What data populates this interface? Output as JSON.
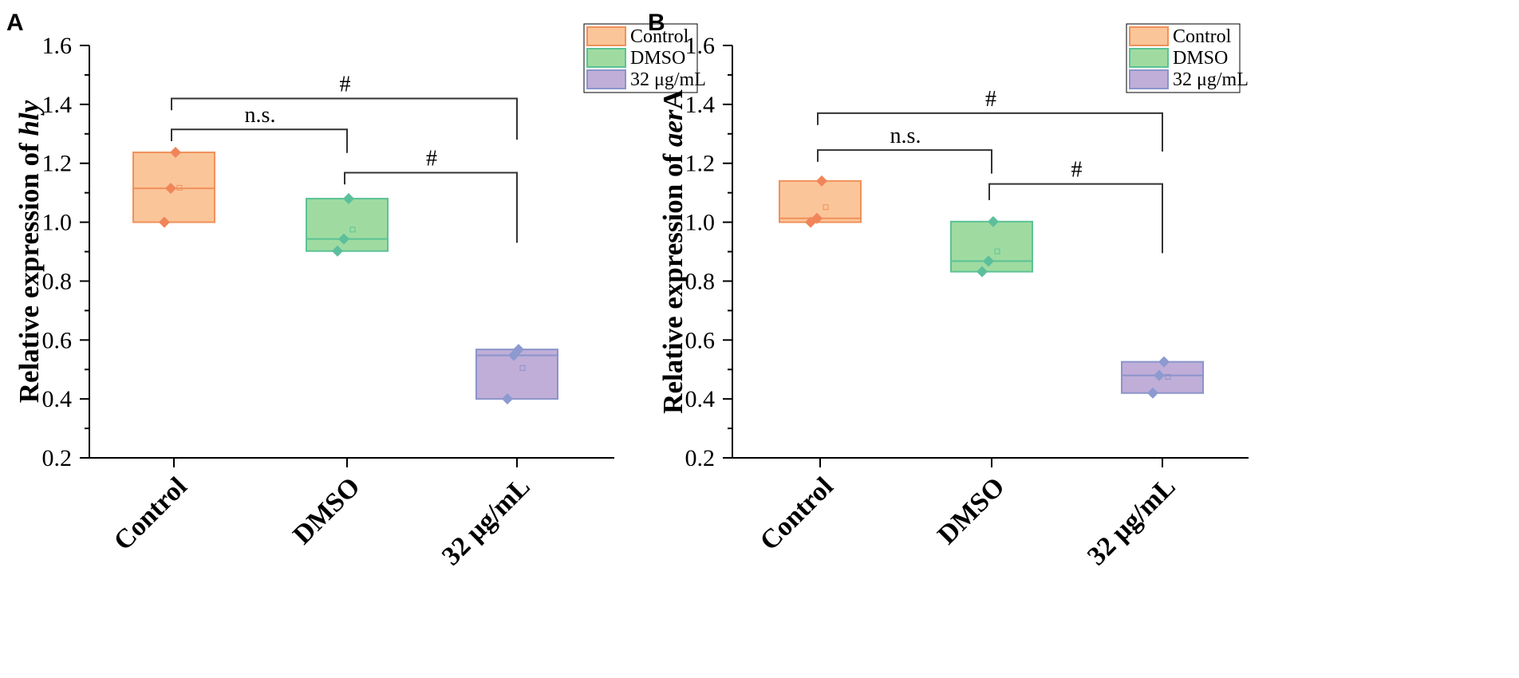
{
  "chart_data": [
    {
      "type": "box",
      "panel": "A",
      "ylabel_prefix": "Relative expression of ",
      "ylabel_gene": "hly",
      "ylim": [
        0.2,
        1.6
      ],
      "yticks": [
        "0.2",
        "0.4",
        "0.6",
        "0.8",
        "1.0",
        "1.2",
        "1.4",
        "1.6"
      ],
      "categories": [
        "Control",
        "DMSO",
        "32 μg/mL"
      ],
      "legend": [
        "Control",
        "DMSO",
        "32 μg/mL"
      ],
      "boxes": [
        {
          "name": "Control",
          "min": 1.0,
          "median": 1.115,
          "max": 1.237,
          "mean": 1.117,
          "points": [
            1.0,
            1.115,
            1.237
          ]
        },
        {
          "name": "DMSO",
          "min": 0.902,
          "median": 0.943,
          "max": 1.08,
          "mean": 0.975,
          "points": [
            0.902,
            0.943,
            1.08
          ]
        },
        {
          "name": "32 μg/mL",
          "min": 0.4,
          "median": 0.548,
          "max": 0.568,
          "mean": 0.505,
          "points": [
            0.4,
            0.548,
            0.568
          ]
        }
      ],
      "brackets": [
        {
          "from": "Control",
          "to": "32 μg/mL",
          "label": "#",
          "level": 1.42,
          "left_end": 1.38,
          "right_end": 1.28
        },
        {
          "from": "Control",
          "to": "DMSO",
          "label": "n.s.",
          "level": 1.315,
          "left_end": 1.275,
          "right_end": 1.235
        },
        {
          "from": "DMSO",
          "to": "32 μg/mL",
          "label": "#",
          "level": 1.168,
          "left_end": 1.128,
          "right_end": 0.93
        }
      ]
    },
    {
      "type": "box",
      "panel": "B",
      "ylabel_prefix": "Relative expression of ",
      "ylabel_gene": "aer",
      "ylabel_suffix": "A",
      "ylim": [
        0.2,
        1.6
      ],
      "yticks": [
        "0.2",
        "0.4",
        "0.6",
        "0.8",
        "1.0",
        "1.2",
        "1.4",
        "1.6"
      ],
      "categories": [
        "Control",
        "DMSO",
        "32 μg/mL"
      ],
      "legend": [
        "Control",
        "DMSO",
        "32 μg/mL"
      ],
      "boxes": [
        {
          "name": "Control",
          "min": 1.0,
          "median": 1.013,
          "max": 1.14,
          "mean": 1.051,
          "points": [
            1.0,
            1.013,
            1.14
          ]
        },
        {
          "name": "DMSO",
          "min": 0.832,
          "median": 0.868,
          "max": 1.002,
          "mean": 0.901,
          "points": [
            0.832,
            0.868,
            1.002
          ]
        },
        {
          "name": "32 μg/mL",
          "min": 0.42,
          "median": 0.48,
          "max": 0.526,
          "mean": 0.475,
          "points": [
            0.42,
            0.48,
            0.526
          ]
        }
      ],
      "brackets": [
        {
          "from": "Control",
          "to": "32 μg/mL",
          "label": "#",
          "level": 1.37,
          "left_end": 1.33,
          "right_end": 1.24
        },
        {
          "from": "Control",
          "to": "DMSO",
          "label": "n.s.",
          "level": 1.245,
          "left_end": 1.205,
          "right_end": 1.165
        },
        {
          "from": "DMSO",
          "to": "32 μg/mL",
          "label": "#",
          "level": 1.13,
          "left_end": 1.075,
          "right_end": 0.895
        }
      ]
    }
  ],
  "colors": {
    "fills": [
      "#fbc59a",
      "#9fdba1",
      "#c0aed8"
    ],
    "strokes": [
      "#f0915a",
      "#5cc295",
      "#8a94c9"
    ],
    "points": [
      "#f0855a",
      "#5cbf9c",
      "#8c9ad0"
    ]
  }
}
